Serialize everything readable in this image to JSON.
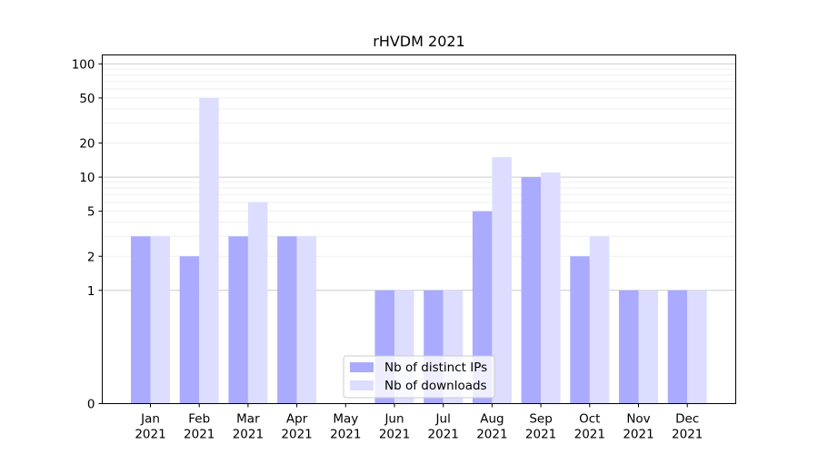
{
  "chart_data": {
    "type": "bar",
    "title": "rHVDM 2021",
    "xlabel": "",
    "ylabel": "",
    "yscale": "symlog",
    "ylim": [
      0,
      120
    ],
    "yticks": [
      0,
      1,
      2,
      5,
      10,
      20,
      50,
      100
    ],
    "grid": true,
    "legend_position": "lower-center",
    "categories": [
      {
        "month": "Jan",
        "year": "2021"
      },
      {
        "month": "Feb",
        "year": "2021"
      },
      {
        "month": "Mar",
        "year": "2021"
      },
      {
        "month": "Apr",
        "year": "2021"
      },
      {
        "month": "May",
        "year": "2021"
      },
      {
        "month": "Jun",
        "year": "2021"
      },
      {
        "month": "Jul",
        "year": "2021"
      },
      {
        "month": "Aug",
        "year": "2021"
      },
      {
        "month": "Sep",
        "year": "2021"
      },
      {
        "month": "Oct",
        "year": "2021"
      },
      {
        "month": "Nov",
        "year": "2021"
      },
      {
        "month": "Dec",
        "year": "2021"
      }
    ],
    "series": [
      {
        "name": "Nb of distinct IPs",
        "color": "#aaaaff",
        "values": [
          3,
          2,
          3,
          3,
          0,
          1,
          1,
          5,
          10,
          2,
          1,
          1
        ]
      },
      {
        "name": "Nb of downloads",
        "color": "#ddddff",
        "values": [
          3,
          50,
          6,
          3,
          0,
          1,
          1,
          15,
          11,
          3,
          1,
          1
        ]
      }
    ]
  }
}
